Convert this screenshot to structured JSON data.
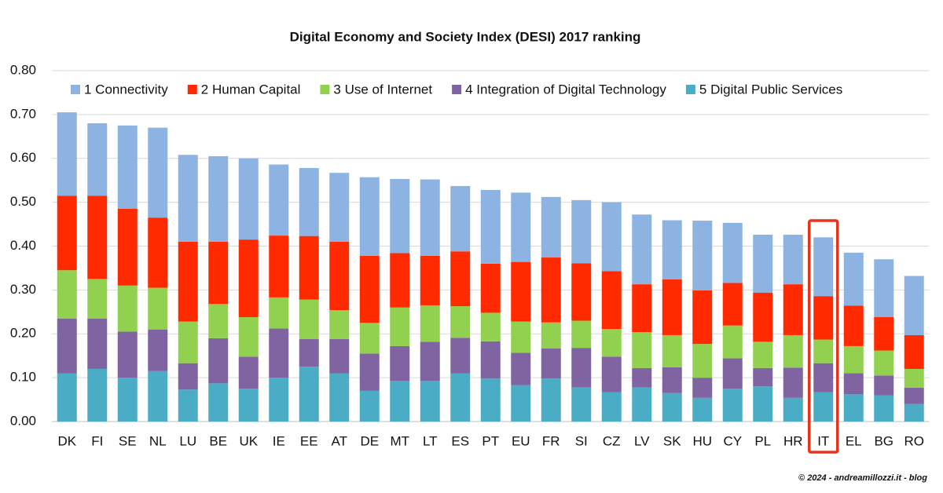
{
  "chart_data": {
    "type": "stacked_bar",
    "title": "Digital Economy and Society Index (DESI) 2017 ranking",
    "footer": "© 2024 - andreamillozzi.it - blog",
    "categories": [
      "DK",
      "FI",
      "SE",
      "NL",
      "LU",
      "BE",
      "UK",
      "IE",
      "EE",
      "AT",
      "DE",
      "MT",
      "LT",
      "ES",
      "PT",
      "EU",
      "FR",
      "SI",
      "CZ",
      "LV",
      "SK",
      "HU",
      "CY",
      "PL",
      "HR",
      "IT",
      "EL",
      "BG",
      "RO"
    ],
    "highlight": "IT",
    "series": [
      {
        "name": "1 Connectivity",
        "color": "#8db3e2",
        "values": [
          0.19,
          0.165,
          0.19,
          0.205,
          0.198,
          0.195,
          0.185,
          0.162,
          0.155,
          0.157,
          0.179,
          0.169,
          0.174,
          0.149,
          0.168,
          0.158,
          0.138,
          0.144,
          0.157,
          0.159,
          0.135,
          0.159,
          0.137,
          0.132,
          0.113,
          0.134,
          0.121,
          0.132,
          0.135
        ]
      },
      {
        "name": "2 Human Capital",
        "color": "#ff2a00",
        "values": [
          0.17,
          0.19,
          0.175,
          0.16,
          0.182,
          0.142,
          0.177,
          0.141,
          0.145,
          0.156,
          0.153,
          0.124,
          0.113,
          0.125,
          0.112,
          0.136,
          0.148,
          0.131,
          0.132,
          0.109,
          0.127,
          0.122,
          0.097,
          0.112,
          0.116,
          0.099,
          0.092,
          0.076,
          0.077
        ]
      },
      {
        "name": "3 Use of Internet",
        "color": "#92d050",
        "values": [
          0.11,
          0.09,
          0.105,
          0.095,
          0.095,
          0.078,
          0.09,
          0.071,
          0.09,
          0.066,
          0.07,
          0.088,
          0.083,
          0.072,
          0.065,
          0.071,
          0.059,
          0.062,
          0.063,
          0.082,
          0.073,
          0.077,
          0.075,
          0.06,
          0.074,
          0.054,
          0.062,
          0.057,
          0.043
        ]
      },
      {
        "name": "4 Integration of Digital Technology",
        "color": "#8064a2",
        "values": [
          0.125,
          0.115,
          0.105,
          0.095,
          0.06,
          0.103,
          0.073,
          0.112,
          0.063,
          0.078,
          0.085,
          0.079,
          0.089,
          0.081,
          0.085,
          0.074,
          0.069,
          0.09,
          0.081,
          0.044,
          0.059,
          0.046,
          0.069,
          0.042,
          0.069,
          0.066,
          0.048,
          0.045,
          0.037
        ]
      },
      {
        "name": "5 Digital Public Services",
        "color": "#4bacc6",
        "values": [
          0.11,
          0.12,
          0.1,
          0.115,
          0.073,
          0.087,
          0.075,
          0.1,
          0.125,
          0.11,
          0.07,
          0.093,
          0.093,
          0.11,
          0.098,
          0.083,
          0.098,
          0.078,
          0.067,
          0.078,
          0.065,
          0.054,
          0.075,
          0.08,
          0.054,
          0.067,
          0.062,
          0.06,
          0.04
        ]
      }
    ],
    "ylim": [
      0,
      0.8
    ],
    "yticks": [
      {
        "value": 0,
        "label": "0.00"
      },
      {
        "value": 0.1,
        "label": "0.10"
      },
      {
        "value": 0.2,
        "label": "0.20"
      },
      {
        "value": 0.3,
        "label": "0.30"
      },
      {
        "value": 0.4,
        "label": "0.40"
      },
      {
        "value": 0.5,
        "label": "0.50"
      },
      {
        "value": 0.6,
        "label": "0.60"
      },
      {
        "value": 0.7,
        "label": "0.70"
      },
      {
        "value": 0.8,
        "label": "0.80"
      }
    ],
    "grid": true
  }
}
